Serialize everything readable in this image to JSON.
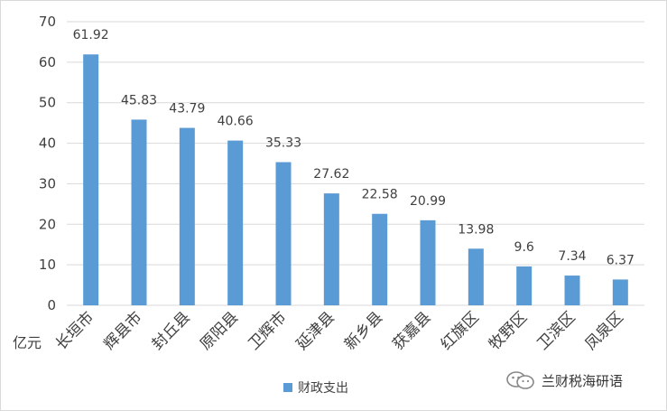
{
  "chart_data": {
    "type": "bar",
    "ylabel": "亿元",
    "ylim": [
      0,
      70
    ],
    "yticks": [
      0,
      10,
      20,
      30,
      40,
      50,
      60,
      70
    ],
    "grid": true,
    "legend_position": "bottom",
    "categories": [
      "长垣市",
      "辉县市",
      "封丘县",
      "原阳县",
      "卫辉市",
      "延津县",
      "新乡县",
      "获嘉县",
      "红旗区",
      "牧野区",
      "卫滨区",
      "凤泉区"
    ],
    "series": [
      {
        "name": "财政支出",
        "values": [
          61.92,
          45.83,
          43.79,
          40.66,
          35.33,
          27.62,
          22.58,
          20.99,
          13.98,
          9.6,
          7.34,
          6.37
        ],
        "labels": [
          "61.92",
          "45.83",
          "43.79",
          "40.66",
          "35.33",
          "27.62",
          "22.58",
          "20.99",
          "13.98",
          "9.6",
          "7.34",
          "6.37"
        ]
      }
    ]
  },
  "colors": {
    "bar": "#5b9bd5",
    "grid": "#d9d9d9",
    "text": "#404040"
  },
  "watermark": {
    "text": "兰财税海研语",
    "icon": "wechat-icon"
  }
}
